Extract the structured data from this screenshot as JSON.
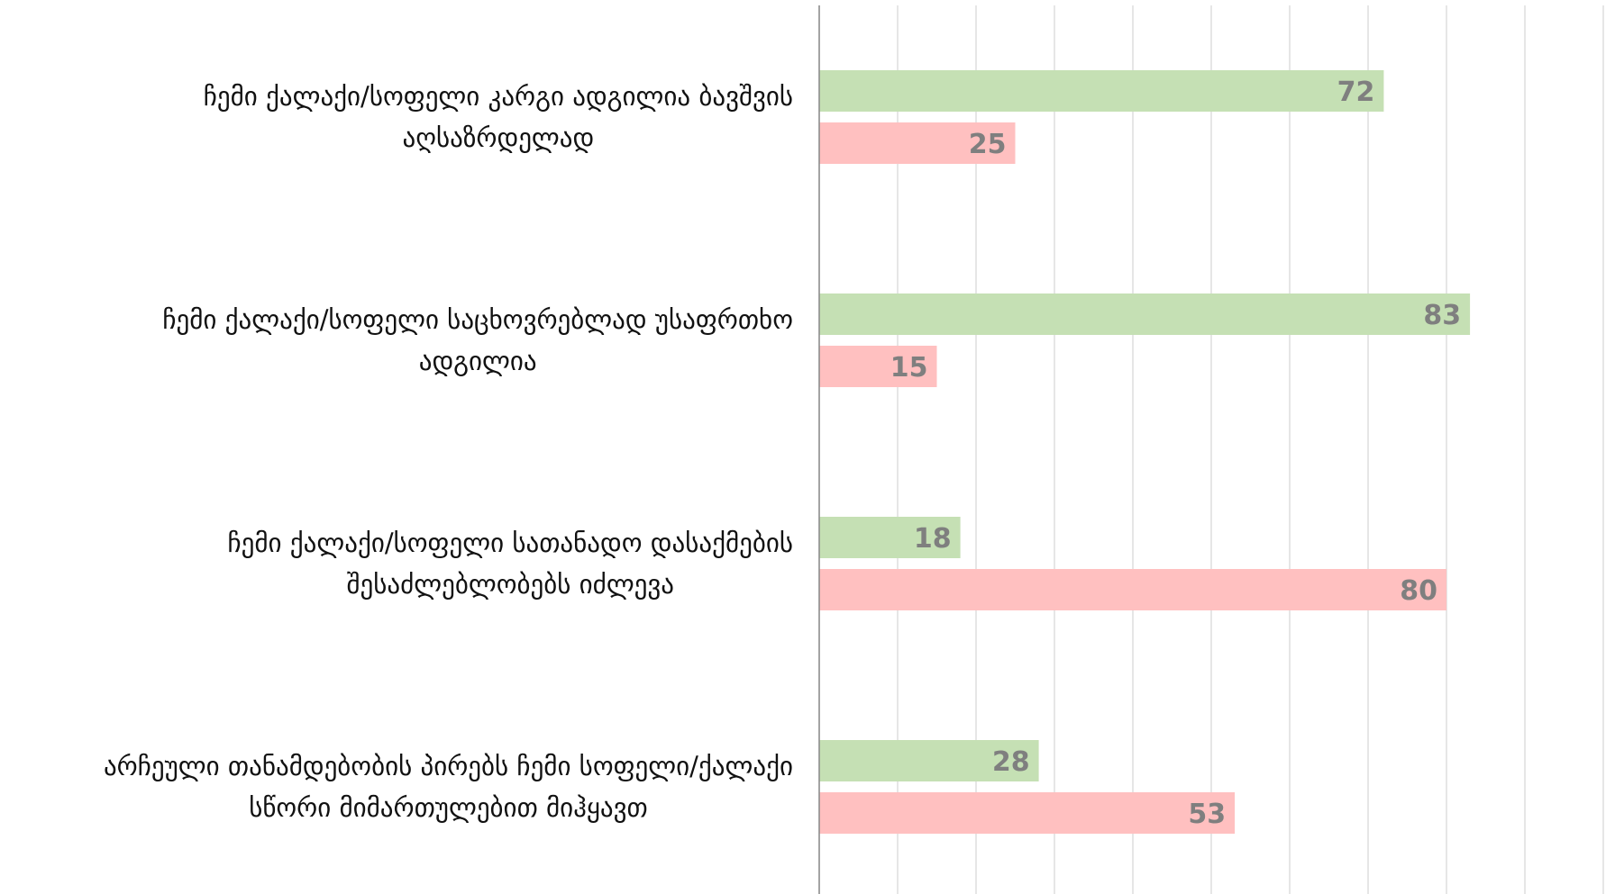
{
  "chart_data": {
    "type": "bar",
    "orientation": "horizontal",
    "categories": [
      "ჩემი ქალაქი/სოფელი კარგი ადგილია ბავშვის აღსაზრდელად",
      "ჩემი ქალაქი/სოფელი საცხოვრებლად უსაფრთხო ადგილია",
      "ჩემი ქალაქი/სოფელი სათანადო დასაქმების შესაძლებლობებს იძლევა",
      "არჩეული თანამდებობის პირებს ჩემი სოფელი/ქალაქი სწორი მიმართულებით მიჰყავთ"
    ],
    "category_lines": [
      [
        "ჩემი ქალაქი/სოფელი კარგი ადგილია ბავშვის",
        "აღსაზრდელად"
      ],
      [
        "ჩემი ქალაქი/სოფელი საცხოვრებლად უსაფრთხო",
        "ადგილია"
      ],
      [
        "ჩემი ქალაქი/სოფელი სათანადო დასაქმების",
        "შესაძლებლობებს იძლევა"
      ],
      [
        "არჩეული თანამდებობის პირებს ჩემი სოფელი/ქალაქი",
        "სწორი მიმართულებით მიჰყავთ"
      ]
    ],
    "series": [
      {
        "values": [
          72,
          83,
          18,
          28
        ],
        "color": "#c5e0b4"
      },
      {
        "values": [
          25,
          15,
          80,
          53
        ],
        "color": "#ffc0c0"
      }
    ],
    "xlim": [
      0,
      100
    ],
    "grid": true,
    "legend": "none",
    "title": "",
    "xlabel": "",
    "ylabel": ""
  }
}
